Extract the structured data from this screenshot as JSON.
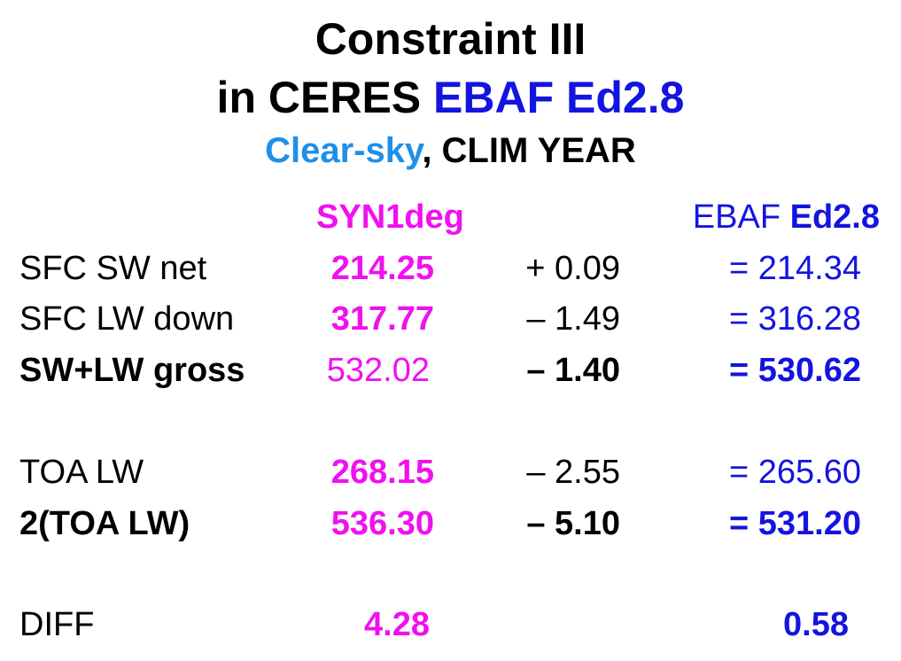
{
  "header": {
    "title_line1": "Constraint III",
    "title_line2_prefix": "in CERES ",
    "title_line2_highlight": "EBAF Ed2.8",
    "subtitle_highlight": "Clear-sky",
    "subtitle_rest": ", CLIM YEAR"
  },
  "table": {
    "columns": [
      "SYN1deg",
      {
        "prefix": "EBAF ",
        "bold": "Ed2.8"
      }
    ],
    "rows": [
      [
        "SFC SW net",
        "214.25",
        "+ 0.09",
        "= 214.34"
      ],
      [
        "SFC LW down",
        "317.77",
        "– 1.49",
        "= 316.28"
      ],
      [
        "SW+LW gross",
        "532.02",
        "– 1.40",
        "= 530.62"
      ],
      [
        "TOA LW",
        "268.15",
        "– 2.55",
        "= 265.60"
      ],
      [
        "2(TOA LW)",
        "536.30",
        "– 5.10",
        "= 531.20"
      ],
      [
        "DIFF",
        "4.28",
        null,
        "0.58"
      ]
    ]
  }
}
